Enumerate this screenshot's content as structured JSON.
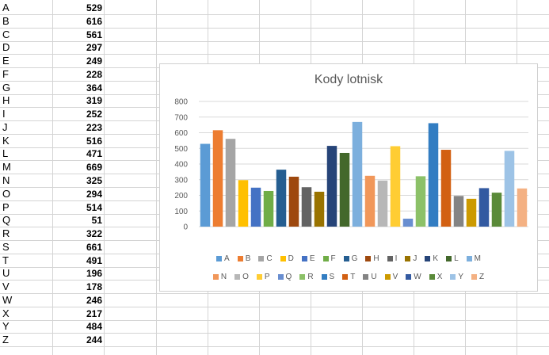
{
  "sheet": {
    "rows": [
      {
        "label": "A",
        "value": "529"
      },
      {
        "label": "B",
        "value": "616"
      },
      {
        "label": "C",
        "value": "561"
      },
      {
        "label": "D",
        "value": "297"
      },
      {
        "label": "E",
        "value": "249"
      },
      {
        "label": "F",
        "value": "228"
      },
      {
        "label": "G",
        "value": "364"
      },
      {
        "label": "H",
        "value": "319"
      },
      {
        "label": "I",
        "value": "252"
      },
      {
        "label": "J",
        "value": "223"
      },
      {
        "label": "K",
        "value": "516"
      },
      {
        "label": "L",
        "value": "471"
      },
      {
        "label": "M",
        "value": "669"
      },
      {
        "label": "N",
        "value": "325"
      },
      {
        "label": "O",
        "value": "294"
      },
      {
        "label": "P",
        "value": "514"
      },
      {
        "label": "Q",
        "value": "51"
      },
      {
        "label": "R",
        "value": "322"
      },
      {
        "label": "S",
        "value": "661"
      },
      {
        "label": "T",
        "value": "491"
      },
      {
        "label": "U",
        "value": "196"
      },
      {
        "label": "V",
        "value": "178"
      },
      {
        "label": "W",
        "value": "246"
      },
      {
        "label": "X",
        "value": "217"
      },
      {
        "label": "Y",
        "value": "484"
      },
      {
        "label": "Z",
        "value": "244"
      }
    ]
  },
  "chart_data": {
    "type": "bar",
    "title": "Kody lotnisk",
    "xlabel": "",
    "ylabel": "",
    "ylim": [
      0,
      800
    ],
    "yticks": [
      0,
      100,
      200,
      300,
      400,
      500,
      600,
      700,
      800
    ],
    "grid": true,
    "legend_position": "bottom",
    "series": [
      {
        "name": "A",
        "value": 529,
        "color": "#5B9BD5"
      },
      {
        "name": "B",
        "value": 616,
        "color": "#ED7D31"
      },
      {
        "name": "C",
        "value": 561,
        "color": "#A5A5A5"
      },
      {
        "name": "D",
        "value": 297,
        "color": "#FFC000"
      },
      {
        "name": "E",
        "value": 249,
        "color": "#4472C4"
      },
      {
        "name": "F",
        "value": 228,
        "color": "#70AD47"
      },
      {
        "name": "G",
        "value": 364,
        "color": "#255E91"
      },
      {
        "name": "H",
        "value": 319,
        "color": "#9E480E"
      },
      {
        "name": "I",
        "value": 252,
        "color": "#636363"
      },
      {
        "name": "J",
        "value": 223,
        "color": "#997300"
      },
      {
        "name": "K",
        "value": 516,
        "color": "#264478"
      },
      {
        "name": "L",
        "value": 471,
        "color": "#43682B"
      },
      {
        "name": "M",
        "value": 669,
        "color": "#7CAFDD"
      },
      {
        "name": "N",
        "value": 325,
        "color": "#F1975A"
      },
      {
        "name": "O",
        "value": 294,
        "color": "#B7B7B7"
      },
      {
        "name": "P",
        "value": 514,
        "color": "#FFCD33"
      },
      {
        "name": "Q",
        "value": 51,
        "color": "#698ED0"
      },
      {
        "name": "R",
        "value": 322,
        "color": "#8CC168"
      },
      {
        "name": "S",
        "value": 661,
        "color": "#327DC2"
      },
      {
        "name": "T",
        "value": 491,
        "color": "#D26012"
      },
      {
        "name": "U",
        "value": 196,
        "color": "#848484"
      },
      {
        "name": "V",
        "value": 178,
        "color": "#CC9A00"
      },
      {
        "name": "W",
        "value": 246,
        "color": "#335AA1"
      },
      {
        "name": "X",
        "value": 217,
        "color": "#5A8A39"
      },
      {
        "name": "Y",
        "value": 484,
        "color": "#9DC3E6"
      },
      {
        "name": "Z",
        "value": 244,
        "color": "#F4B183"
      }
    ],
    "legend_rows": [
      [
        "A",
        "B",
        "C",
        "D",
        "E",
        "F",
        "G",
        "H",
        "I",
        "J",
        "K",
        "L",
        "M"
      ],
      [
        "N",
        "O",
        "P",
        "Q",
        "R",
        "S",
        "T",
        "U",
        "V",
        "W",
        "X",
        "Y",
        "Z"
      ]
    ]
  }
}
